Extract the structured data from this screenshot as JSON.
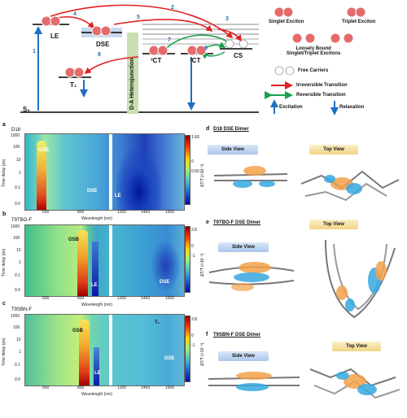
{
  "scheme": {
    "states": {
      "s0": "S₀",
      "le": "LE",
      "dse": "DSE",
      "t1": "T₁",
      "ct3": "³CT",
      "ct1": "¹CT",
      "cs": "CS"
    },
    "heterojunction_label": "D-A Heterojunction",
    "transition_numbers": [
      "1",
      "2",
      "3",
      "4",
      "5",
      "6",
      "7",
      "8"
    ],
    "legend": {
      "singlet_exciton": "Singlet Exciton",
      "triplet_exciton": "Triplet Exciton",
      "loosely_bound": "Loosely Bound\nSinglet/Triplet Excitons",
      "free_carriers": "Free Carriers",
      "irreversible": "Irreversible Transition",
      "reversible": "Reversible Transition",
      "excitation": "Excitation",
      "relaxation": "Relaxation"
    },
    "colors": {
      "irreversible": "#e02020",
      "reversible": "#1aa04a",
      "excitation": "#1f6fc0",
      "exciton": "#e46b6b",
      "heterojunction": "#c9dfb2"
    }
  },
  "panels": [
    {
      "letter": "a",
      "title": "D18",
      "labels": [
        "GSB",
        "DSE",
        "LE"
      ],
      "ylabel": "Time delay (ps)",
      "xlabel": "Wavelength (nm)",
      "cbar_label": "ΔT/T (×10⁻³)",
      "cbar_ticks": [
        "1.60",
        "0",
        "0.50"
      ]
    },
    {
      "letter": "b",
      "title": "T9TBO-F",
      "labels": [
        "GSB",
        "LE",
        "DSE"
      ],
      "ylabel": "Time delay (ps)",
      "xlabel": "Wavelength (nm)",
      "cbar_label": "ΔT/T (×10⁻³)",
      "cbar_ticks": [
        "2.8",
        "0",
        "-1"
      ]
    },
    {
      "letter": "c",
      "title": "T9SBN-F",
      "labels": [
        "GSB",
        "LE",
        "T₁",
        "DSE"
      ],
      "ylabel": "Time delay (ps)",
      "xlabel": "Wavelength (nm)",
      "cbar_label": "ΔT/T (×10⁻³)",
      "cbar_ticks": [
        "2.8",
        "0",
        "-1"
      ]
    }
  ],
  "yticks": [
    "1000",
    "100",
    "10",
    "1",
    "0.1",
    "0.0"
  ],
  "xticks": [
    "600",
    "800",
    "1200",
    "1400",
    "1600"
  ],
  "dimers": [
    {
      "letter": "d",
      "title": "D18 DSE Dimer",
      "side": "Side View",
      "top": "Top View"
    },
    {
      "letter": "e",
      "title": "T9TBO-F DSE Dimer",
      "side": "Side View",
      "top": "Top View"
    },
    {
      "letter": "f",
      "title": "T9SBN-F DSE Dimer",
      "side": "Side View",
      "top": "Top View"
    }
  ]
}
